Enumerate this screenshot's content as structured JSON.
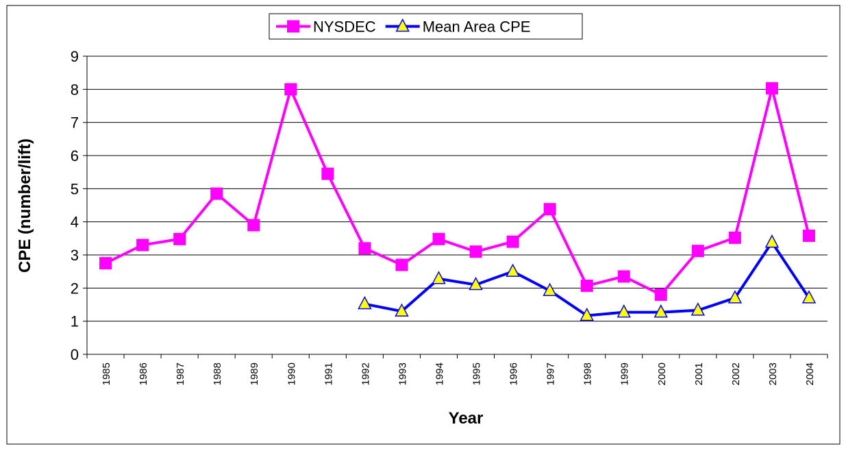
{
  "chart_data": {
    "type": "line",
    "x_label": "Year",
    "y_label": "CPE (number/lift)",
    "categories": [
      "1985",
      "1986",
      "1987",
      "1988",
      "1989",
      "1990",
      "1991",
      "1992",
      "1993",
      "1994",
      "1995",
      "1996",
      "1997",
      "1998",
      "1999",
      "2000",
      "2001",
      "2002",
      "2003",
      "2004"
    ],
    "series": [
      {
        "name": "NYSDEC",
        "color": "#ff00ff",
        "marker": "square",
        "values": [
          2.75,
          3.3,
          3.48,
          4.85,
          3.9,
          8.0,
          5.45,
          3.2,
          2.7,
          3.48,
          3.1,
          3.4,
          4.38,
          2.07,
          2.35,
          1.8,
          3.12,
          3.52,
          8.03,
          3.58
        ]
      },
      {
        "name": "Mean Area CPE",
        "color": "#0000ff",
        "marker": "triangle",
        "marker_color": "#ffff00",
        "values": [
          null,
          null,
          null,
          null,
          null,
          null,
          null,
          1.52,
          1.3,
          2.28,
          2.1,
          2.5,
          1.92,
          1.17,
          1.27,
          1.27,
          1.33,
          1.7,
          3.38,
          1.7
        ]
      }
    ],
    "ylim": [
      0,
      9
    ],
    "yticks": [
      0,
      1,
      2,
      3,
      4,
      5,
      6,
      7,
      8,
      9
    ],
    "grid": true,
    "legend": "top"
  }
}
